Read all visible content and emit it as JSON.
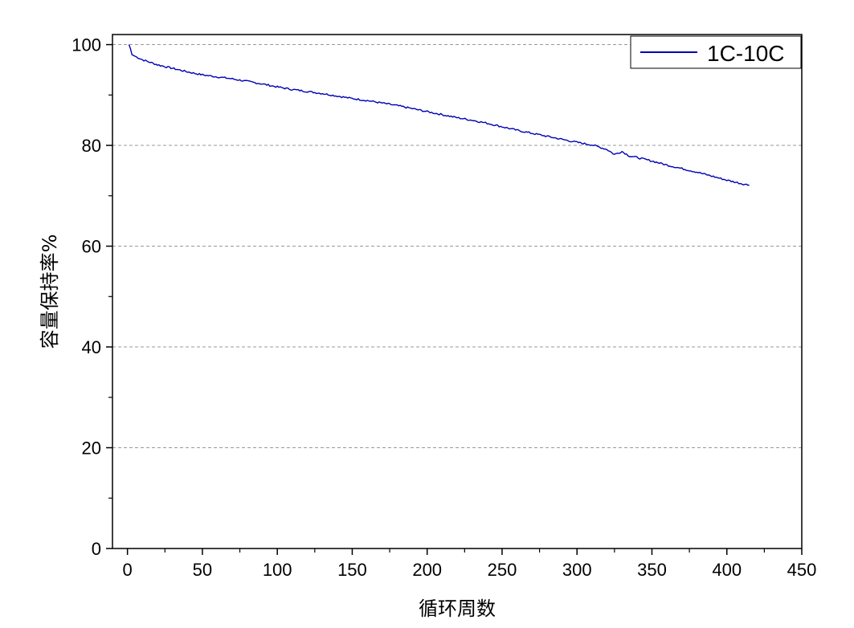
{
  "chart_data": {
    "type": "line",
    "title": "",
    "xlabel": "循环周数",
    "ylabel": "容量保持率%",
    "xlim": [
      -10,
      450
    ],
    "ylim": [
      0,
      102
    ],
    "x_ticks": [
      0,
      50,
      100,
      150,
      200,
      250,
      300,
      350,
      400,
      450
    ],
    "y_ticks": [
      0,
      20,
      40,
      60,
      80,
      100
    ],
    "grid": "horizontal-dashed",
    "legend_position": "top-right",
    "colors": {
      "series": "#0000b3",
      "grid": "#999999",
      "axis": "#000000"
    },
    "series": [
      {
        "name": "1C-10C",
        "x": [
          1,
          2,
          3,
          5,
          10,
          20,
          30,
          40,
          50,
          60,
          70,
          80,
          90,
          100,
          110,
          120,
          130,
          140,
          150,
          160,
          170,
          180,
          190,
          200,
          210,
          220,
          230,
          240,
          250,
          260,
          270,
          280,
          290,
          300,
          310,
          320,
          325,
          330,
          335,
          340,
          350,
          360,
          370,
          380,
          390,
          400,
          410,
          415
        ],
        "y": [
          100,
          99.2,
          98.0,
          97.7,
          97.0,
          96.0,
          95.3,
          94.6,
          94.0,
          93.6,
          93.2,
          92.7,
          92.2,
          91.6,
          91.1,
          90.7,
          90.3,
          89.8,
          89.3,
          88.9,
          88.4,
          87.9,
          87.3,
          86.7,
          86.1,
          85.5,
          85.0,
          84.4,
          83.7,
          83.0,
          82.4,
          81.8,
          81.2,
          80.6,
          80.1,
          79.2,
          78.2,
          78.8,
          77.9,
          77.6,
          76.9,
          76.1,
          75.4,
          74.7,
          73.9,
          73.1,
          72.4,
          72.1
        ]
      }
    ]
  }
}
